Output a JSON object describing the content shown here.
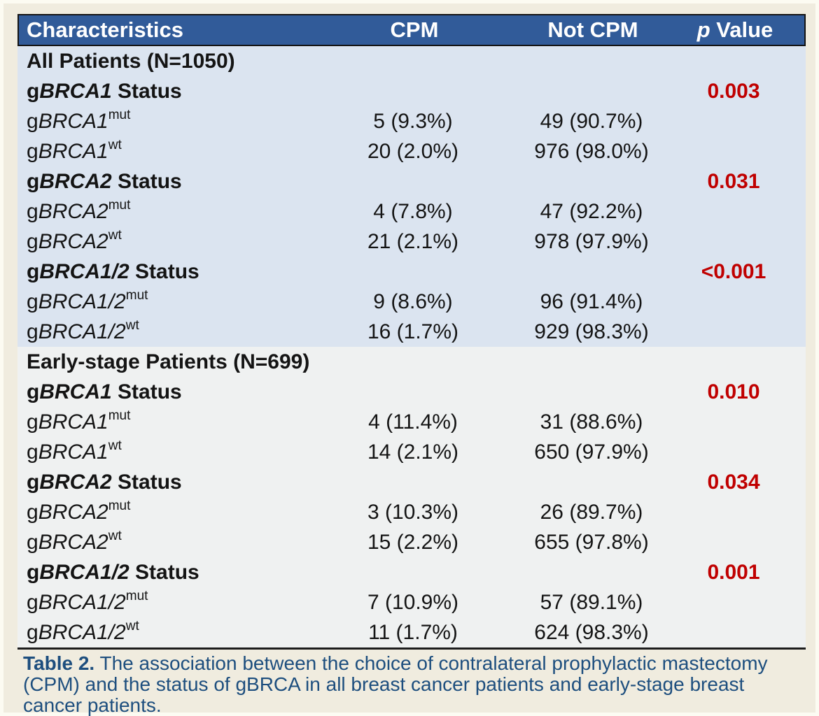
{
  "colors": {
    "page_bg": "#f0ecdf",
    "frame": "#fcfbf2",
    "header_bg": "#315b99",
    "header_text": "#ffffff",
    "section_all_bg": "#dbe4f0",
    "section_early_bg": "#eff1f1",
    "body_text": "#141414",
    "p_value_red": "#c00000",
    "caption_text": "#1d4e7e",
    "border_dark": "#141414"
  },
  "table": {
    "header": {
      "characteristics": "Characteristics",
      "cpm": "CPM",
      "not_cpm": "Not CPM",
      "p_italic": "p",
      "p_rest": " Value"
    },
    "rows": [
      {
        "kind": "section",
        "group": "all",
        "text": "All Patients (N=1050)"
      },
      {
        "kind": "status",
        "group": "all",
        "prefix": "g",
        "gene": "BRCA1",
        "suffix": " Status",
        "p": "0.003"
      },
      {
        "kind": "value",
        "group": "all",
        "prefix": "g",
        "gene": "BRCA1",
        "sup": "mut",
        "cpm": "5 (9.3%)",
        "not_cpm": "49 (90.7%)"
      },
      {
        "kind": "value",
        "group": "all",
        "prefix": "g",
        "gene": "BRCA1",
        "sup": "wt",
        "cpm": "20 (2.0%)",
        "not_cpm": "976 (98.0%)"
      },
      {
        "kind": "status",
        "group": "all",
        "prefix": "g",
        "gene": "BRCA2",
        "suffix": " Status",
        "p": "0.031"
      },
      {
        "kind": "value",
        "group": "all",
        "prefix": "g",
        "gene": "BRCA2",
        "sup": "mut",
        "cpm": "4 (7.8%)",
        "not_cpm": "47 (92.2%)"
      },
      {
        "kind": "value",
        "group": "all",
        "prefix": "g",
        "gene": "BRCA2",
        "sup": "wt",
        "cpm": "21 (2.1%)",
        "not_cpm": "978 (97.9%)"
      },
      {
        "kind": "status",
        "group": "all",
        "prefix": "g",
        "gene": "BRCA1/2",
        "suffix": " Status",
        "p": "<0.001"
      },
      {
        "kind": "value",
        "group": "all",
        "prefix": "g",
        "gene": "BRCA1/2",
        "sup": "mut",
        "cpm": "9 (8.6%)",
        "not_cpm": "96 (91.4%)"
      },
      {
        "kind": "value",
        "group": "all",
        "prefix": "g",
        "gene": "BRCA1/2",
        "sup": "wt",
        "cpm": "16 (1.7%)",
        "not_cpm": "929 (98.3%)"
      },
      {
        "kind": "section",
        "group": "early",
        "text": "Early-stage Patients (N=699)"
      },
      {
        "kind": "status",
        "group": "early",
        "prefix": "g",
        "gene": "BRCA1",
        "suffix": " Status",
        "p": "0.010"
      },
      {
        "kind": "value",
        "group": "early",
        "prefix": "g",
        "gene": "BRCA1",
        "sup": "mut",
        "cpm": "4 (11.4%)",
        "not_cpm": "31 (88.6%)"
      },
      {
        "kind": "value",
        "group": "early",
        "prefix": "g",
        "gene": "BRCA1",
        "sup": "wt",
        "cpm": "14 (2.1%)",
        "not_cpm": "650 (97.9%)"
      },
      {
        "kind": "status",
        "group": "early",
        "prefix": "g",
        "gene": "BRCA2",
        "suffix": " Status",
        "p": "0.034"
      },
      {
        "kind": "value",
        "group": "early",
        "prefix": "g",
        "gene": "BRCA2",
        "sup": "mut",
        "cpm": "3 (10.3%)",
        "not_cpm": "26 (89.7%)"
      },
      {
        "kind": "value",
        "group": "early",
        "prefix": "g",
        "gene": "BRCA2",
        "sup": "wt",
        "cpm": "15 (2.2%)",
        "not_cpm": "655 (97.8%)"
      },
      {
        "kind": "status",
        "group": "early",
        "prefix": "g",
        "gene": "BRCA1/2",
        "suffix": " Status",
        "p": "0.001"
      },
      {
        "kind": "value",
        "group": "early",
        "prefix": "g",
        "gene": "BRCA1/2",
        "sup": "mut",
        "cpm": "7 (10.9%)",
        "not_cpm": "57 (89.1%)"
      },
      {
        "kind": "value",
        "group": "early",
        "prefix": "g",
        "gene": "BRCA1/2",
        "sup": "wt",
        "cpm": "11 (1.7%)",
        "not_cpm": "624 (98.3%)"
      }
    ]
  },
  "caption": {
    "label": "Table 2.",
    "text": " The association between the choice of contralateral prophylactic mastectomy (CPM) and the status of gBRCA in all breast cancer patients and early-stage breast cancer patients."
  }
}
